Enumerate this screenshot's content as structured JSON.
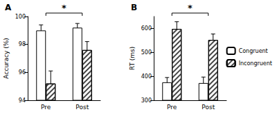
{
  "chart_data": [
    {
      "type": "bar",
      "title": "A",
      "y_label": "Accuracy (%)",
      "categories": [
        "Pre",
        "Post"
      ],
      "series": [
        {
          "name": "Congruent",
          "color": "#ffffff",
          "values": [
            99.0,
            99.2
          ],
          "errors": [
            0.4,
            0.3
          ]
        },
        {
          "name": "Incongruent",
          "color": "#ffffff",
          "values": [
            95.2,
            97.6
          ],
          "errors": [
            0.9,
            0.6
          ]
        }
      ],
      "ylim": [
        94,
        100
      ],
      "yticks": [
        94,
        96,
        98,
        100
      ],
      "grid": false,
      "annotations": [
        {
          "text": "*",
          "from": "Pre",
          "to": "Post"
        }
      ]
    },
    {
      "type": "bar",
      "title": "B",
      "y_label": "RT (ms)",
      "categories": [
        "Pre",
        "Post"
      ],
      "series": [
        {
          "name": "Congruent",
          "color": "#ffffff",
          "values": [
            375,
            372
          ],
          "errors": [
            20,
            25
          ]
        },
        {
          "name": "Incongruent",
          "color": "#ffffff",
          "values": [
            598,
            552
          ],
          "errors": [
            30,
            25
          ]
        }
      ],
      "ylim": [
        300,
        650
      ],
      "yticks": [
        300,
        400,
        500,
        600
      ],
      "grid": false,
      "legend": "right",
      "annotations": [
        {
          "text": "*",
          "from": "Pre",
          "to": "Post"
        }
      ]
    }
  ]
}
